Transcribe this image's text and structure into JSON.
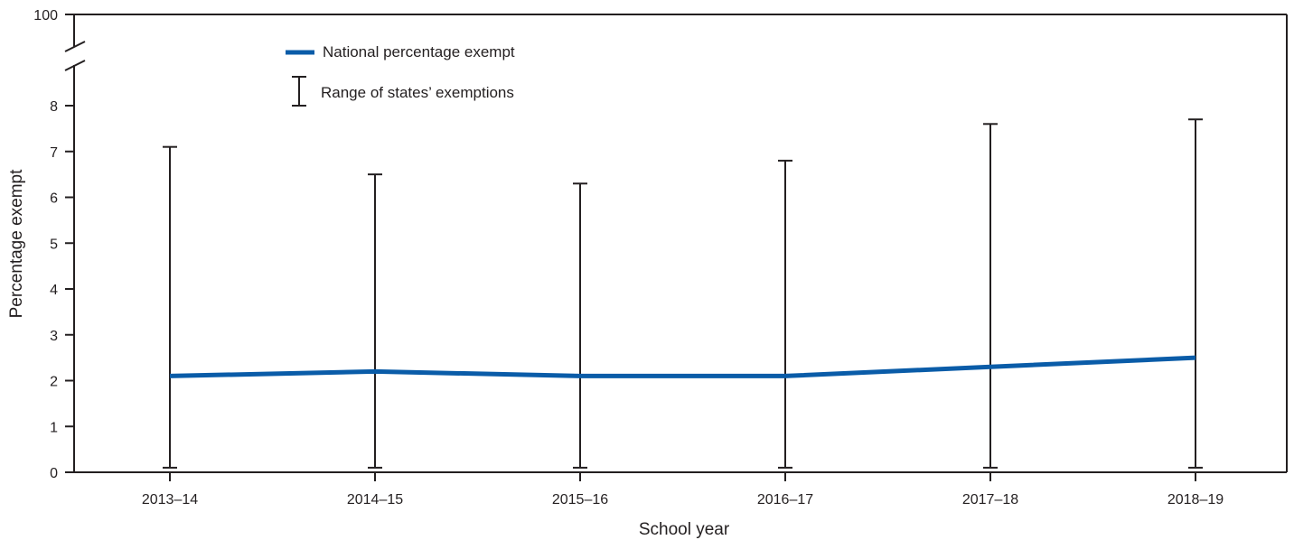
{
  "chart_data": {
    "type": "line",
    "title": "",
    "xlabel": "School year",
    "ylabel": "Percentage exempt",
    "categories": [
      "2013–14",
      "2014–15",
      "2015–16",
      "2016–17",
      "2017–18",
      "2018–19"
    ],
    "series": [
      {
        "name": "National percentage exempt",
        "color": "#0a5ca8",
        "values": [
          2.1,
          2.2,
          2.1,
          2.1,
          2.3,
          2.5
        ]
      }
    ],
    "ranges": {
      "name": "Range of states’ exemptions",
      "color": "#231f20",
      "low": [
        0.1,
        0.1,
        0.1,
        0.1,
        0.1,
        0.1
      ],
      "high": [
        7.1,
        6.5,
        6.3,
        6.8,
        7.6,
        7.7
      ]
    },
    "ylim": [
      0,
      8
    ],
    "y_ticks": [
      "0",
      "1",
      "2",
      "3",
      "4",
      "5",
      "6",
      "7",
      "8"
    ],
    "y_axis_break": true,
    "y_top_label": "100",
    "grid": false,
    "legend_position": "top-left"
  }
}
